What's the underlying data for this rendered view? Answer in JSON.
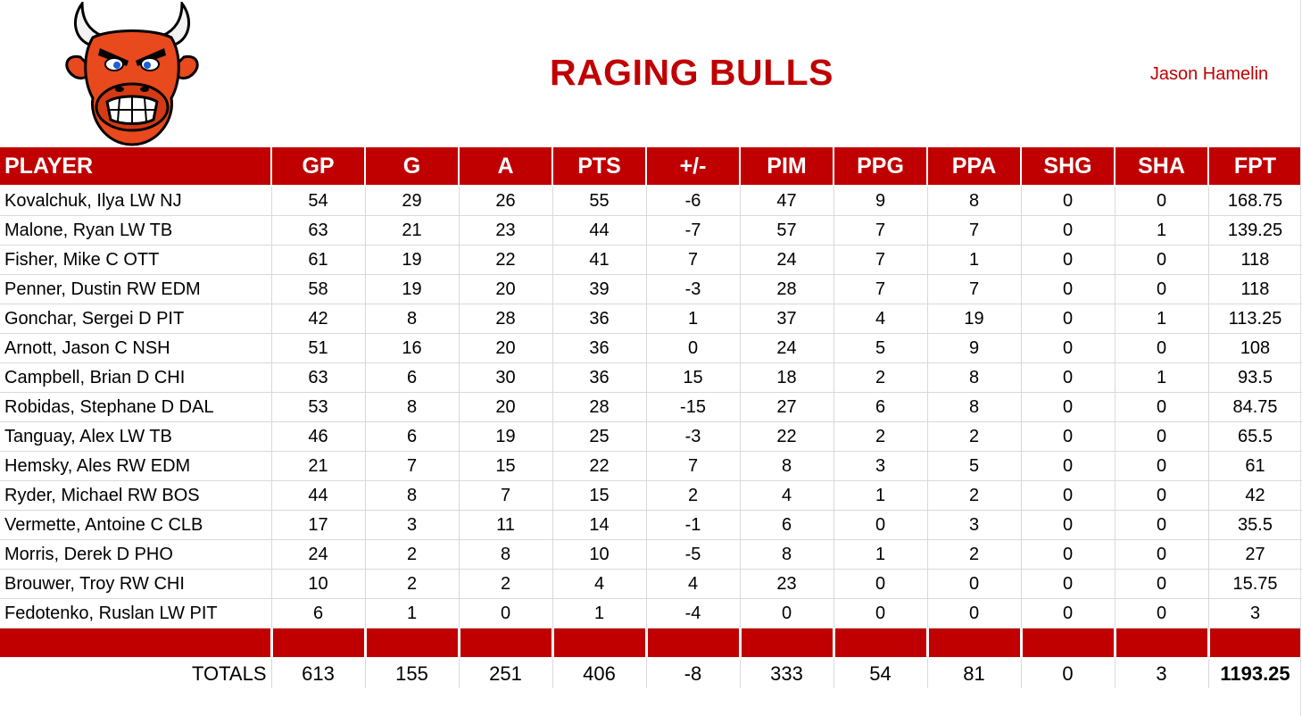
{
  "team": {
    "name": "RAGING BULLS",
    "owner": "Jason Hamelin"
  },
  "columns": [
    "PLAYER",
    "GP",
    "G",
    "A",
    "PTS",
    "+/-",
    "PIM",
    "PPG",
    "PPA",
    "SHG",
    "SHA",
    "FPT"
  ],
  "players": [
    [
      "Kovalchuk, Ilya LW NJ",
      "54",
      "29",
      "26",
      "55",
      "-6",
      "47",
      "9",
      "8",
      "0",
      "0",
      "168.75"
    ],
    [
      "Malone, Ryan LW TB",
      "63",
      "21",
      "23",
      "44",
      "-7",
      "57",
      "7",
      "7",
      "0",
      "1",
      "139.25"
    ],
    [
      "Fisher, Mike C OTT",
      "61",
      "19",
      "22",
      "41",
      "7",
      "24",
      "7",
      "1",
      "0",
      "0",
      "118"
    ],
    [
      "Penner, Dustin RW EDM",
      "58",
      "19",
      "20",
      "39",
      "-3",
      "28",
      "7",
      "7",
      "0",
      "0",
      "118"
    ],
    [
      "Gonchar, Sergei D PIT",
      "42",
      "8",
      "28",
      "36",
      "1",
      "37",
      "4",
      "19",
      "0",
      "1",
      "113.25"
    ],
    [
      "Arnott, Jason C NSH",
      "51",
      "16",
      "20",
      "36",
      "0",
      "24",
      "5",
      "9",
      "0",
      "0",
      "108"
    ],
    [
      "Campbell, Brian D CHI",
      "63",
      "6",
      "30",
      "36",
      "15",
      "18",
      "2",
      "8",
      "0",
      "1",
      "93.5"
    ],
    [
      "Robidas, Stephane D DAL",
      "53",
      "8",
      "20",
      "28",
      "-15",
      "27",
      "6",
      "8",
      "0",
      "0",
      "84.75"
    ],
    [
      "Tanguay, Alex LW TB",
      "46",
      "6",
      "19",
      "25",
      "-3",
      "22",
      "2",
      "2",
      "0",
      "0",
      "65.5"
    ],
    [
      "Hemsky, Ales RW EDM",
      "21",
      "7",
      "15",
      "22",
      "7",
      "8",
      "3",
      "5",
      "0",
      "0",
      "61"
    ],
    [
      "Ryder, Michael RW BOS",
      "44",
      "8",
      "7",
      "15",
      "2",
      "4",
      "1",
      "2",
      "0",
      "0",
      "42"
    ],
    [
      "Vermette, Antoine C CLB",
      "17",
      "3",
      "11",
      "14",
      "-1",
      "6",
      "0",
      "3",
      "0",
      "0",
      "35.5"
    ],
    [
      "Morris, Derek D PHO",
      "24",
      "2",
      "8",
      "10",
      "-5",
      "8",
      "1",
      "2",
      "0",
      "0",
      "27"
    ],
    [
      "Brouwer, Troy RW CHI",
      "10",
      "2",
      "2",
      "4",
      "4",
      "23",
      "0",
      "0",
      "0",
      "0",
      "15.75"
    ],
    [
      "Fedotenko, Ruslan LW PIT",
      "6",
      "1",
      "0",
      "1",
      "-4",
      "0",
      "0",
      "0",
      "0",
      "0",
      "3"
    ]
  ],
  "totals": [
    "TOTALS",
    "613",
    "155",
    "251",
    "406",
    "-8",
    "333",
    "54",
    "81",
    "0",
    "3",
    "1193.25"
  ],
  "colors": {
    "accent": "#c00000",
    "header_text": "#ffffff"
  },
  "logo": {
    "icon": "bull-head-icon"
  }
}
